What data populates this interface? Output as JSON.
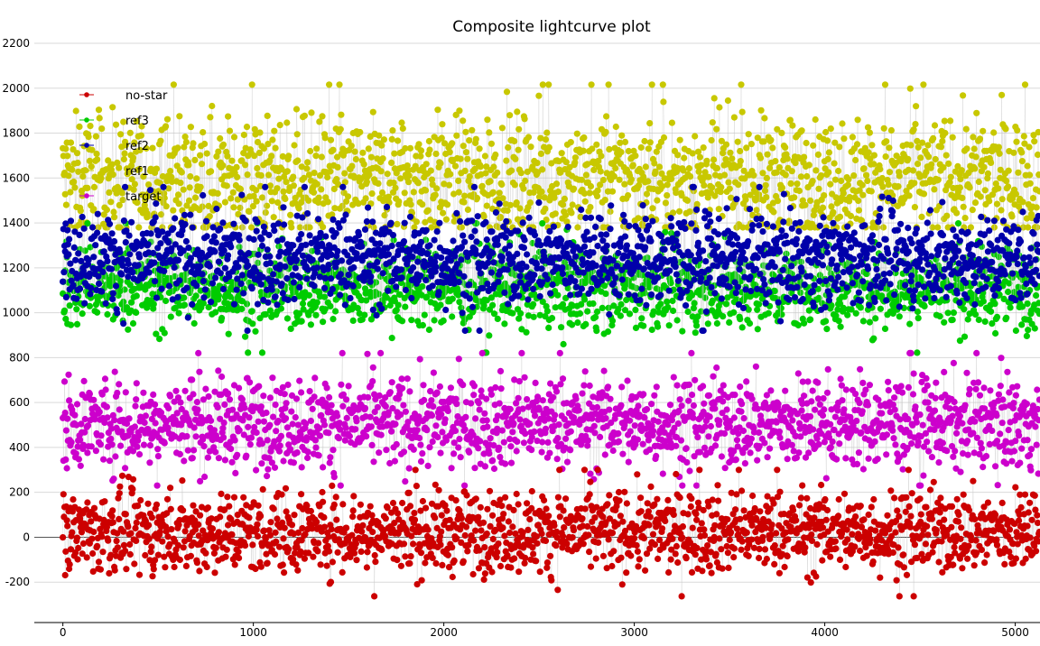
{
  "chart_data": {
    "type": "scatter",
    "title": "Composite lightcurve plot",
    "xlabel": "",
    "ylabel": "",
    "xlim": [
      -150,
      5130
    ],
    "ylim": [
      -380,
      2200
    ],
    "x_ticks": [
      0,
      1000,
      2000,
      3000,
      4000,
      5000
    ],
    "y_ticks": [
      -200,
      0,
      200,
      400,
      600,
      800,
      1000,
      1200,
      1400,
      1600,
      1800,
      2000,
      2200
    ],
    "grid": true,
    "legend_position": "top-left",
    "n_points_per_series": 5130,
    "legend": [
      {
        "name": "no-star",
        "color": "#cc0000"
      },
      {
        "name": "ref3",
        "color": "#00cc00"
      },
      {
        "name": "ref2",
        "color": "#0000aa"
      },
      {
        "name": "ref1",
        "color": "#c8c800"
      },
      {
        "name": "target",
        "color": "#cc00cc"
      }
    ],
    "series": [
      {
        "name": "ref1",
        "color": "#c8c800",
        "mean": 1600,
        "spread": 130,
        "min": 1380,
        "max": 2100
      },
      {
        "name": "ref3",
        "color": "#00cc00",
        "mean": 1110,
        "spread": 90,
        "min": 760,
        "max": 1460
      },
      {
        "name": "ref2",
        "color": "#0000aa",
        "mean": 1240,
        "spread": 100,
        "min": 900,
        "max": 1560
      },
      {
        "name": "target",
        "color": "#cc00cc",
        "mean": 510,
        "spread": 100,
        "min": 230,
        "max": 820
      },
      {
        "name": "no-star",
        "color": "#cc0000",
        "mean": 25,
        "spread": 90,
        "min": -280,
        "max": 300
      }
    ]
  }
}
